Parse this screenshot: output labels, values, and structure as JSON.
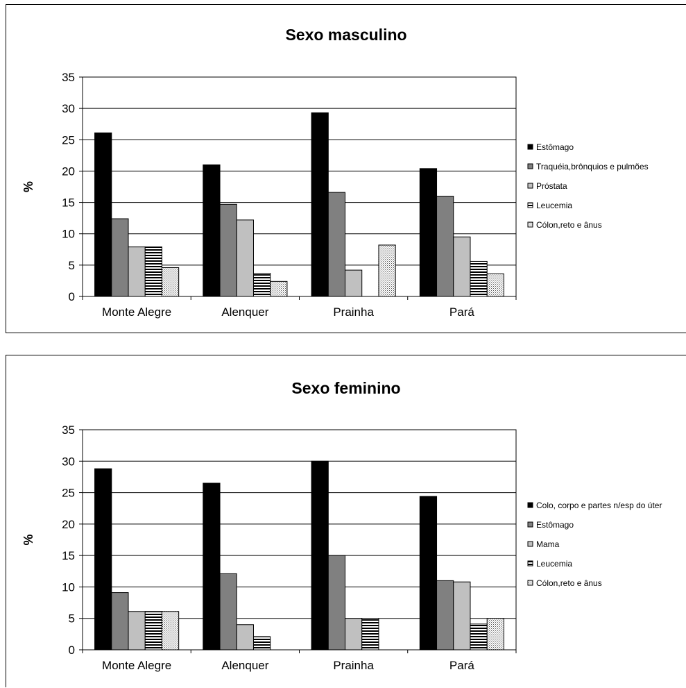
{
  "chart_data": [
    {
      "type": "bar",
      "title": "Sexo masculino",
      "ylabel": "%",
      "xlabel": "",
      "ylim": [
        0,
        35
      ],
      "yticks": [
        0,
        5,
        10,
        15,
        20,
        25,
        30,
        35
      ],
      "grid": true,
      "legend_position": "right",
      "categories": [
        "Monte Alegre",
        "Alenquer",
        "Prainha",
        "Pará"
      ],
      "series": [
        {
          "name": "Estômago",
          "pattern": "solid-black",
          "values": [
            26.1,
            21.0,
            29.3,
            20.4
          ]
        },
        {
          "name": "Traquéia,brônquios e pulmões",
          "pattern": "dark-gray",
          "values": [
            12.4,
            14.7,
            16.6,
            16.0
          ]
        },
        {
          "name": "Próstata",
          "pattern": "light-gray",
          "values": [
            7.9,
            12.2,
            4.2,
            9.5
          ]
        },
        {
          "name": "Leucemia",
          "pattern": "horizontal-stripes",
          "values": [
            7.9,
            3.7,
            0,
            5.6
          ]
        },
        {
          "name": "Cólon,reto e ânus",
          "pattern": "dots",
          "values": [
            4.6,
            2.4,
            8.2,
            3.6
          ]
        }
      ]
    },
    {
      "type": "bar",
      "title": "Sexo feminino",
      "ylabel": "%",
      "xlabel": "",
      "ylim": [
        0,
        35
      ],
      "yticks": [
        0,
        5,
        10,
        15,
        20,
        25,
        30,
        35
      ],
      "grid": true,
      "legend_position": "right",
      "categories": [
        "Monte Alegre",
        "Alenquer",
        "Prainha",
        "Pará"
      ],
      "series": [
        {
          "name": "Colo, corpo e partes n/esp do úter",
          "pattern": "solid-black",
          "values": [
            28.8,
            26.5,
            30.0,
            24.4
          ]
        },
        {
          "name": "Estômago",
          "pattern": "dark-gray",
          "values": [
            9.1,
            12.1,
            15.0,
            11.0
          ]
        },
        {
          "name": "Mama",
          "pattern": "light-gray",
          "values": [
            6.1,
            4.0,
            5.0,
            10.8
          ]
        },
        {
          "name": "Leucemia",
          "pattern": "horizontal-stripes",
          "values": [
            6.1,
            2.1,
            5.0,
            4.1
          ]
        },
        {
          "name": "Cólon,reto e ânus",
          "pattern": "dots",
          "values": [
            6.1,
            0,
            0,
            5.0
          ]
        }
      ]
    }
  ]
}
